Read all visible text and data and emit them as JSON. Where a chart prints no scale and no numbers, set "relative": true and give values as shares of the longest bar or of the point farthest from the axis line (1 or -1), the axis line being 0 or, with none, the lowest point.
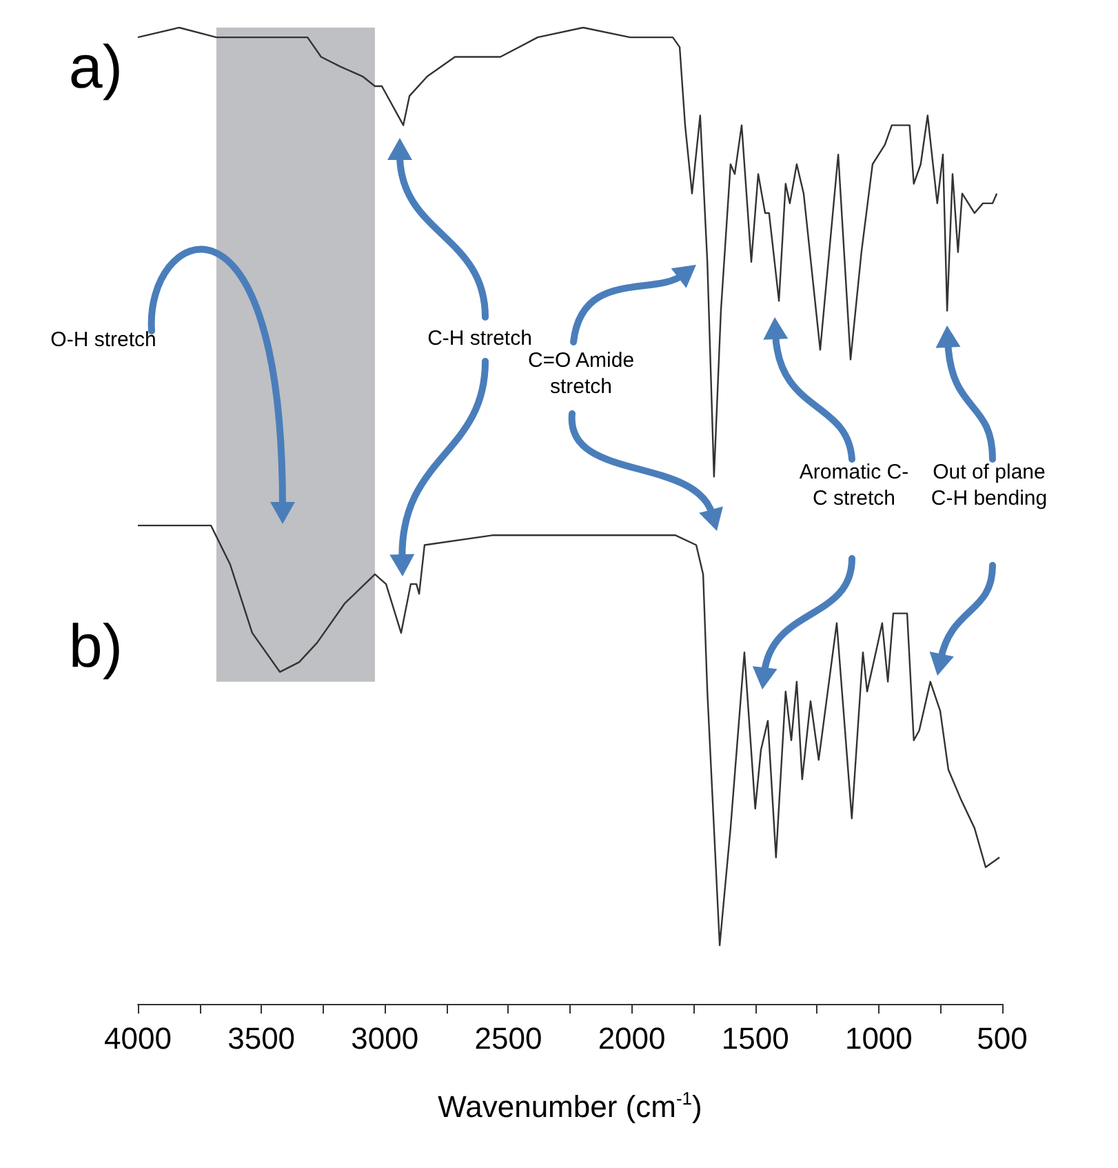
{
  "chart_data": {
    "type": "line",
    "relative": true,
    "xlabel": "Wavenumber (cm$^{-1}$)",
    "xlim": [
      4000,
      500
    ],
    "xticks": [
      4000,
      {
        "value": 3750,
        "label": null
      },
      3500,
      {
        "value": 3250,
        "label": null
      },
      3000,
      {
        "value": 2750,
        "label": null
      },
      2500,
      {
        "value": 2250,
        "label": null
      },
      2000,
      {
        "value": 1750,
        "label": null
      },
      1500,
      {
        "value": 1250,
        "label": null
      },
      1000,
      {
        "value": 750,
        "label": null
      },
      500
    ],
    "grid": false,
    "marker": "none",
    "line_style": "solid",
    "bands": [
      {
        "axis": "x",
        "from": 3682,
        "to": 3040,
        "color": "#bfc0c3"
      }
    ],
    "annotations": [
      "O-H stretch",
      "C-H stretch",
      "C=O Amide stretch",
      "Aromatic C-C stretch",
      "Out of plane C-H bending"
    ],
    "series": [
      {
        "name": "a)",
        "color": "#333333",
        "x": [
          4000,
          3833,
          3682,
          3498,
          3442,
          3313,
          3258,
          3180,
          3090,
          3040,
          3012,
          2925,
          2900,
          2828,
          2716,
          2532,
          2381,
          2197,
          2007,
          1834,
          1806,
          1784,
          1756,
          1723,
          1694,
          1667,
          1639,
          1600,
          1583,
          1555,
          1516,
          1488,
          1460,
          1444,
          1404,
          1377,
          1360,
          1332,
          1304,
          1237,
          1164,
          1114,
          1070,
          1025,
          975,
          947,
          914,
          875,
          858,
          830,
          802,
          763,
          740,
          723,
          701,
          679,
          662,
          612,
          578,
          539,
          522
        ],
        "values": [
          0.99,
          1,
          0.99,
          0.99,
          0.99,
          0.99,
          0.97,
          0.96,
          0.95,
          0.94,
          0.94,
          0.9,
          0.93,
          0.95,
          0.97,
          0.97,
          0.99,
          1,
          0.99,
          0.99,
          0.98,
          0.9,
          0.83,
          0.91,
          0.76,
          0.54,
          0.71,
          0.86,
          0.85,
          0.9,
          0.76,
          0.85,
          0.81,
          0.81,
          0.72,
          0.84,
          0.82,
          0.86,
          0.83,
          0.67,
          0.87,
          0.66,
          0.77,
          0.86,
          0.88,
          0.9,
          0.9,
          0.9,
          0.84,
          0.86,
          0.91,
          0.82,
          0.87,
          0.71,
          0.85,
          0.77,
          0.83,
          0.81,
          0.82,
          0.82,
          0.83
        ]
      },
      {
        "name": "b)",
        "color": "#333333",
        "x": [
          4000,
          3704,
          3626,
          3537,
          3425,
          3347,
          3274,
          3163,
          3040,
          2995,
          2934,
          2895,
          2872,
          2861,
          2839,
          2565,
          2197,
          2007,
          1823,
          1739,
          1711,
          1694,
          1644,
          1600,
          1544,
          1500,
          1477,
          1449,
          1416,
          1377,
          1354,
          1332,
          1310,
          1276,
          1243,
          1170,
          1109,
          1064,
          1047,
          1003,
          986,
          963,
          941,
          885,
          858,
          836,
          791,
          751,
          718,
          668,
          612,
          567,
          511
        ],
        "values": [
          0.49,
          0.49,
          0.45,
          0.38,
          0.34,
          0.35,
          0.37,
          0.41,
          0.44,
          0.43,
          0.38,
          0.43,
          0.43,
          0.42,
          0.47,
          0.48,
          0.48,
          0.48,
          0.48,
          0.47,
          0.44,
          0.32,
          0.06,
          0.18,
          0.36,
          0.2,
          0.26,
          0.29,
          0.15,
          0.32,
          0.27,
          0.33,
          0.23,
          0.31,
          0.25,
          0.39,
          0.19,
          0.36,
          0.32,
          0.37,
          0.39,
          0.33,
          0.4,
          0.4,
          0.27,
          0.28,
          0.33,
          0.3,
          0.24,
          0.21,
          0.18,
          0.14,
          0.15
        ]
      }
    ]
  }
}
